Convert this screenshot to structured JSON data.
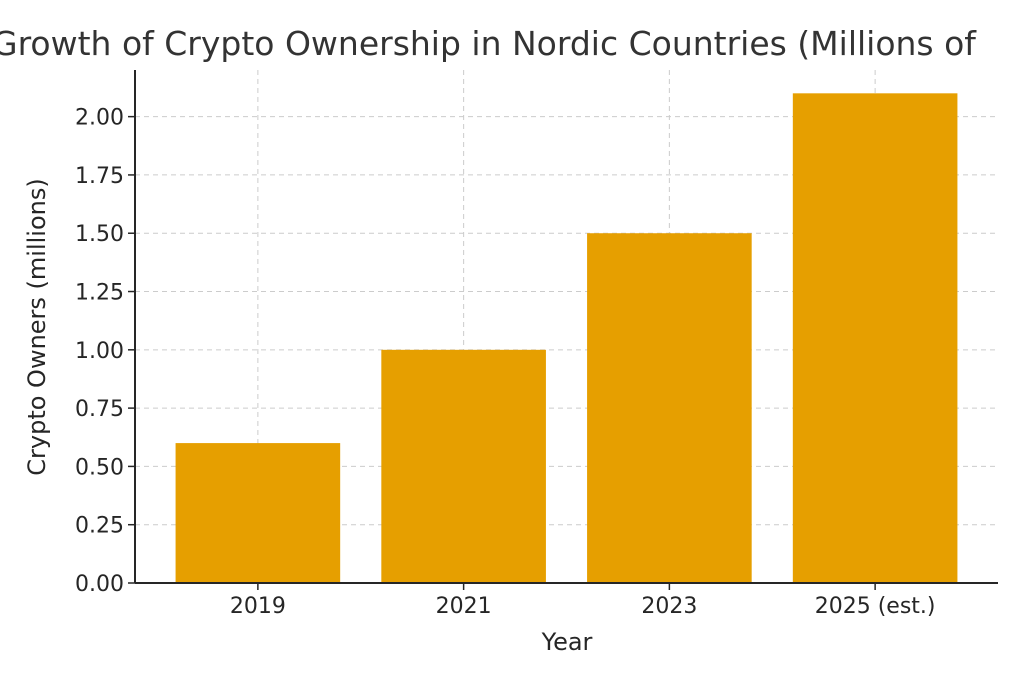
{
  "chart_data": {
    "type": "bar",
    "title": "Growth of Crypto Ownership in Nordic Countries (Millions of",
    "xlabel": "Year",
    "ylabel": "Crypto Owners (millions)",
    "categories": [
      "2019",
      "2021",
      "2023",
      "2025 (est.)"
    ],
    "values": [
      0.6,
      1.0,
      1.5,
      2.1
    ],
    "ylim": [
      0,
      2.1
    ],
    "yticks": [
      "0.00",
      "0.25",
      "0.50",
      "0.75",
      "1.00",
      "1.25",
      "1.50",
      "1.75",
      "2.00"
    ],
    "ytick_values": [
      0,
      0.25,
      0.5,
      0.75,
      1.0,
      1.25,
      1.5,
      1.75,
      2.0
    ],
    "grid": true,
    "bar_color": "#E69F00",
    "grid_color": "#cccccc",
    "axis_color": "#262626"
  }
}
